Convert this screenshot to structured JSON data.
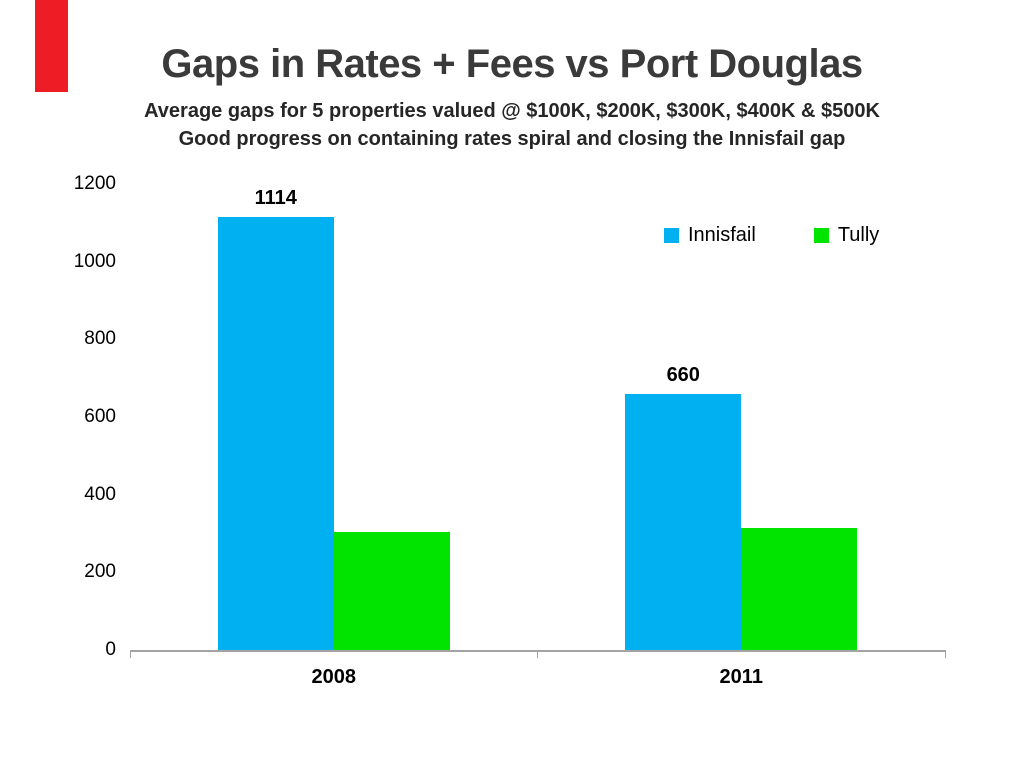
{
  "slide": {
    "title": "Gaps in Rates + Fees vs Port Douglas",
    "subtitle1": "Average gaps for 5 properties valued @ $100K, $200K, $300K, $400K & $500K",
    "subtitle2": "Good progress on containing rates spiral and closing the Innisfail gap"
  },
  "colors": {
    "accent_bar": "#ee1c25",
    "axis_line": "#a3a3a3",
    "title_text": "#3a3a3a"
  },
  "chart_data": {
    "type": "bar",
    "title": "Gaps in Rates + Fees vs Port Douglas",
    "subtitle": "Average gaps for 5 properties valued @ $100K, $200K, $300K, $400K & $500K — Good progress on containing rates spiral and closing the Innisfail gap",
    "categories": [
      "2008",
      "2011"
    ],
    "series": [
      {
        "name": "Innisfail",
        "color": "#00b0f0",
        "values": [
          1114,
          660
        ],
        "show_value_labels": true
      },
      {
        "name": "Tully",
        "color": "#00e400",
        "values": [
          305,
          315
        ],
        "show_value_labels": false
      }
    ],
    "xlabel": "",
    "ylabel": "",
    "ylim": [
      0,
      1200
    ],
    "yticks": [
      0,
      200,
      400,
      600,
      800,
      1000,
      1200
    ],
    "grid": false,
    "legend_position": "top-right"
  }
}
